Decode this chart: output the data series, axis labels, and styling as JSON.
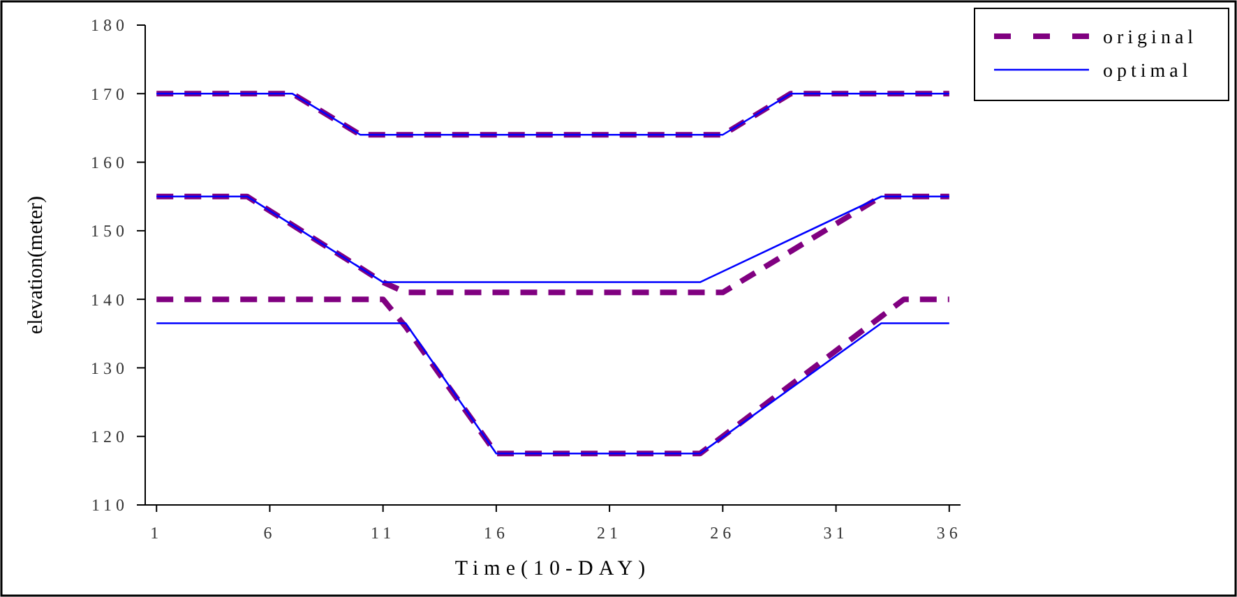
{
  "chart_data": {
    "type": "line",
    "xlabel": "Time(10-DAY)",
    "ylabel": "elevation(meter)",
    "xlim": [
      0.5,
      36.5
    ],
    "xticks": [
      1,
      6,
      11,
      16,
      21,
      26,
      31,
      36
    ],
    "ylim": [
      110,
      180
    ],
    "yticks": [
      110,
      120,
      130,
      140,
      150,
      160,
      170,
      180
    ],
    "grid": false,
    "legend": "top right",
    "marker": "none",
    "series": [
      {
        "name": "original",
        "color": "#800080",
        "line_style": "dashed",
        "x": [
          1,
          7,
          10,
          26,
          29,
          36
        ],
        "values": [
          170,
          170,
          164,
          164,
          170,
          170
        ]
      },
      {
        "name": "optimal",
        "color": "#0000ff",
        "line_style": "solid",
        "x": [
          1,
          7,
          10,
          26,
          29,
          36
        ],
        "values": [
          170,
          170,
          164,
          164,
          170,
          170
        ]
      },
      {
        "color": "#800080",
        "line_style": "dashed",
        "x": [
          1,
          5,
          11,
          12,
          26,
          33,
          36
        ],
        "values": [
          155,
          155,
          142.5,
          141,
          141,
          155,
          155
        ]
      },
      {
        "color": "#0000ff",
        "line_style": "solid",
        "x": [
          1,
          5,
          11,
          25,
          33,
          36
        ],
        "values": [
          155,
          155,
          142.5,
          142.5,
          155,
          155
        ]
      },
      {
        "color": "#800080",
        "line_style": "dashed",
        "x": [
          1,
          11,
          12,
          16,
          25,
          33,
          34,
          36
        ],
        "values": [
          140,
          140,
          136,
          117.5,
          117.5,
          137.5,
          140,
          140
        ]
      },
      {
        "color": "#0000ff",
        "line_style": "solid",
        "x": [
          1,
          12,
          16,
          25,
          33,
          36
        ],
        "values": [
          136.5,
          136.5,
          117.5,
          117.5,
          136.5,
          136.5
        ]
      }
    ]
  }
}
